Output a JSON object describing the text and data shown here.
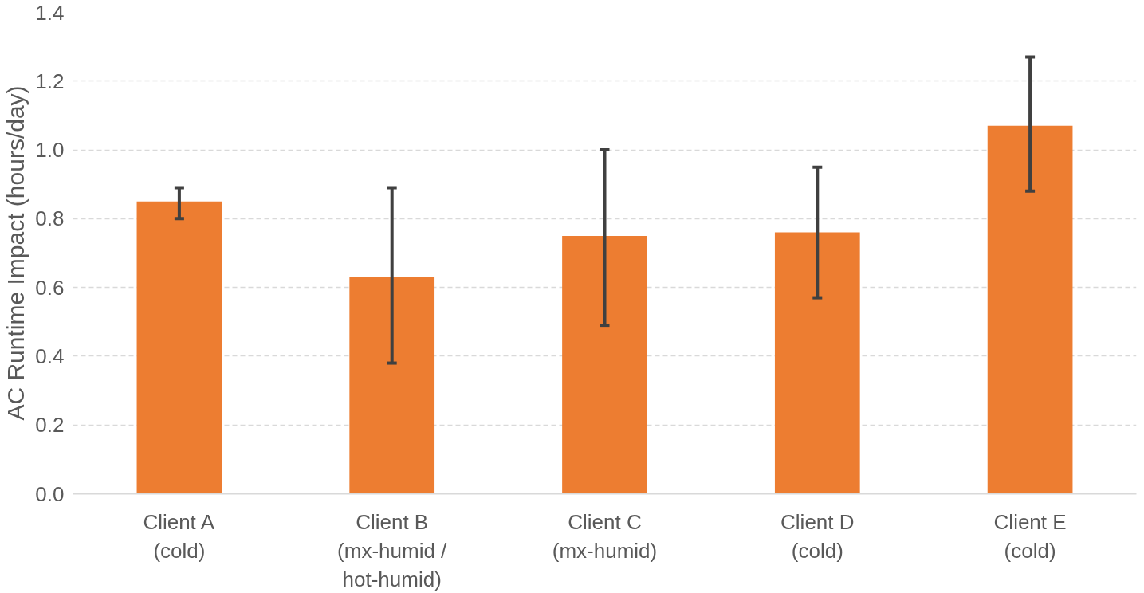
{
  "chart_data": {
    "type": "bar",
    "ylabel": "AC Runtime Impact (hours/day)",
    "categories": [
      "Client A\n(cold)",
      "Client B\n(mx-humid /\nhot-humid)",
      "Client C\n(mx-humid)",
      "Client D\n(cold)",
      "Client E\n(cold)"
    ],
    "values": [
      0.85,
      0.63,
      0.75,
      0.76,
      1.07
    ],
    "color": "#ed7d31",
    "errors": [
      [
        0.8,
        0.89
      ],
      [
        0.38,
        0.89
      ],
      [
        0.49,
        1.0
      ],
      [
        0.57,
        0.95
      ],
      [
        0.88,
        1.27
      ]
    ],
    "ylim": [
      0,
      1.4
    ],
    "yticks": [
      {
        "value": 0,
        "label": "0.0"
      },
      0.2,
      0.4,
      0.6,
      0.8,
      {
        "value": 1.0,
        "label": "1.0"
      },
      1.2,
      1.4
    ],
    "grid": "y"
  }
}
